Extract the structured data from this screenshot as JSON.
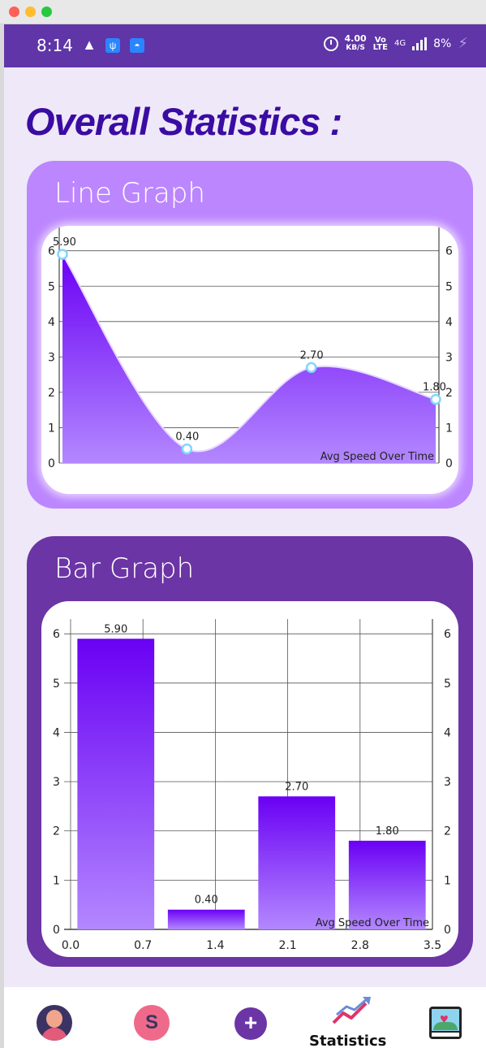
{
  "status_bar": {
    "time": "8:14",
    "net_speed_value": "4.00",
    "net_speed_unit": "KB/S",
    "volte_top": "Vo",
    "volte_bottom": "LTE",
    "network": "4G",
    "battery": "8%"
  },
  "page_title": "Overall Statistics :",
  "line_card": {
    "title": "Line Graph"
  },
  "bar_card": {
    "title": "Bar Graph"
  },
  "nav": {
    "active_label": "Statistics",
    "items": [
      "profile-icon",
      "route-icon",
      "add-icon",
      "statistics-icon",
      "gallery-icon"
    ]
  },
  "colors": {
    "status_bar": "#5f35a8",
    "title": "#3a0ca3",
    "line_card_bg": "#bc86ff",
    "bar_card_bg": "#6b35a5",
    "series_top": "#6a00f4",
    "series_bottom": "#b388ff"
  },
  "chart_data": [
    {
      "type": "area",
      "series": [
        {
          "name": "Avg Speed Over Time",
          "values": [
            5.9,
            0.4,
            2.7,
            1.8
          ],
          "value_labels": [
            "5.90",
            "0.40",
            "2.70",
            "1.80"
          ]
        }
      ],
      "yticks": [
        "0",
        "1",
        "2",
        "3",
        "4",
        "5",
        "6"
      ],
      "ylim": [
        0,
        6.2
      ],
      "grid": true,
      "smooth": true,
      "legend": "bottom-right"
    },
    {
      "type": "bar",
      "series": [
        {
          "name": "Avg Speed Over Time",
          "values": [
            5.9,
            0.4,
            2.7,
            1.8
          ],
          "value_labels": [
            "5.90",
            "0.40",
            "2.70",
            "1.80"
          ]
        }
      ],
      "xticks": [
        "0.0",
        "0.7",
        "1.4",
        "2.1",
        "2.8",
        "3.5"
      ],
      "xlim": [
        0,
        3.5
      ],
      "yticks": [
        "0",
        "1",
        "2",
        "3",
        "4",
        "5",
        "6"
      ],
      "ylim": [
        0,
        6.3
      ],
      "grid": true,
      "legend": "bottom-right"
    }
  ]
}
